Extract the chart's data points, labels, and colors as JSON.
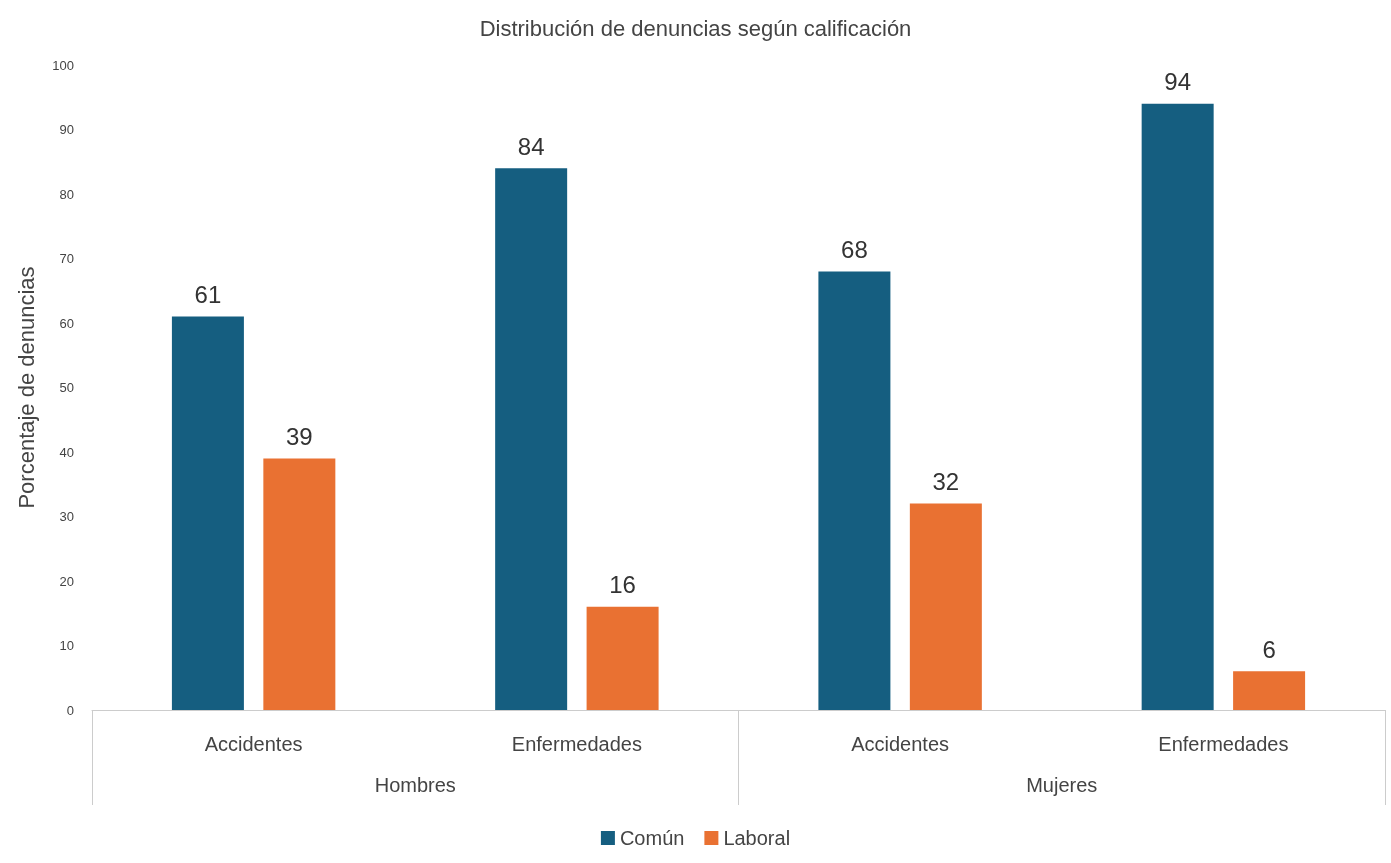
{
  "chart_data": {
    "type": "bar",
    "title": "Distribución de denuncias según calificación",
    "ylabel": "Porcentaje de denuncias",
    "categories": [
      "Accidentes",
      "Enfermedades",
      "Accidentes",
      "Enfermedades"
    ],
    "annotations": [
      "Hombres",
      "Mujeres"
    ],
    "series": [
      {
        "name": "Común",
        "color": "#155e80",
        "values": [
          61,
          84,
          68,
          94
        ]
      },
      {
        "name": "Laboral",
        "color": "#e97132",
        "values": [
          39,
          16,
          32,
          6
        ]
      }
    ],
    "ylim": [
      0,
      100
    ],
    "yticks": [
      0,
      10,
      20,
      30,
      40,
      50,
      60,
      70,
      80,
      90,
      100
    ],
    "grid": false,
    "legend": "bottom",
    "data_labels": true
  }
}
